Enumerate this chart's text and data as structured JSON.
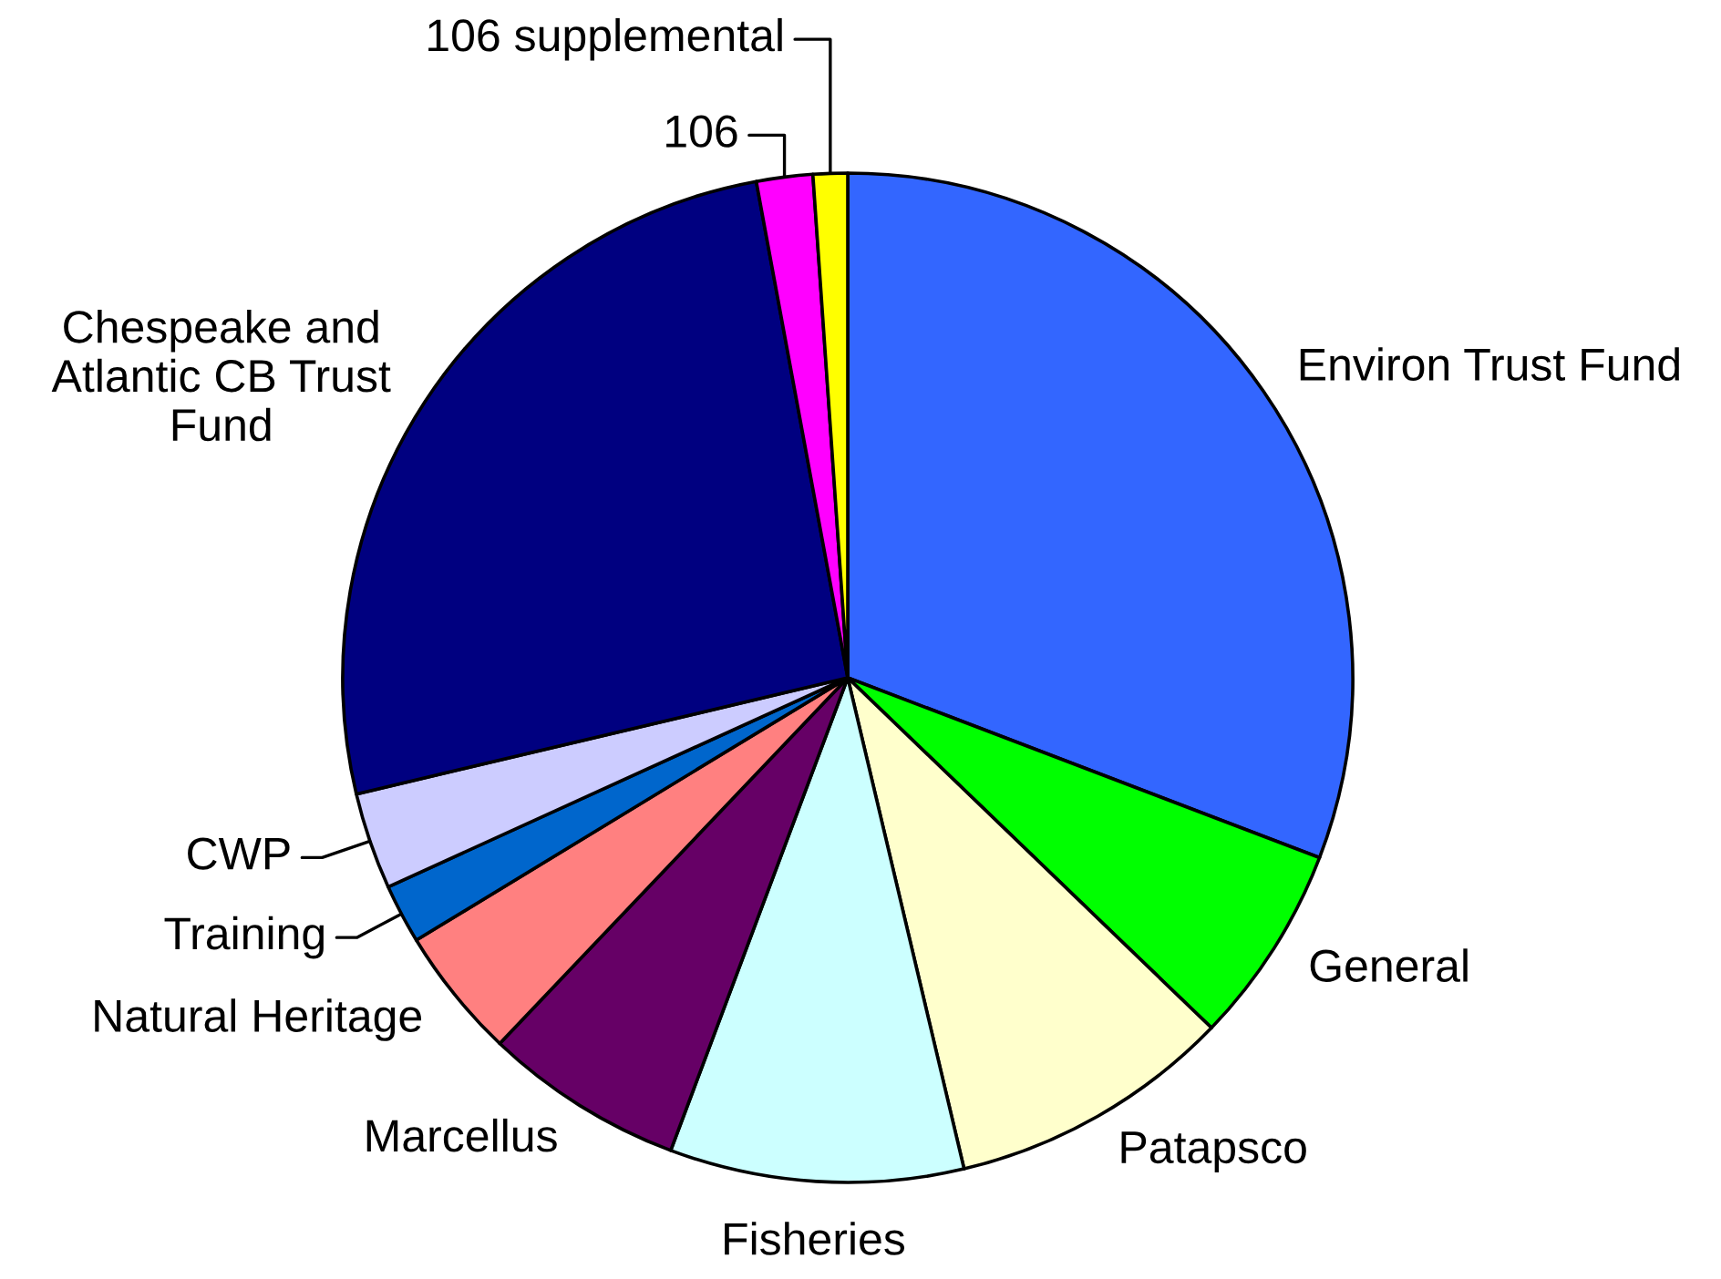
{
  "chart_data": {
    "type": "pie",
    "categories": [
      "Environ Trust Fund",
      "General",
      "Patapsco",
      "Fisheries",
      "Marcellus",
      "Natural Heritage",
      "Training",
      "CWP",
      "Chespeake and\nAtlantic CB Trust\nFund",
      "106",
      "106 supplemental"
    ],
    "values": [
      30.8,
      6.4,
      9.1,
      9.4,
      6.4,
      4.2,
      1.9,
      3.1,
      25.8,
      1.8,
      1.1
    ],
    "colors": [
      "#3366ff",
      "#00ff00",
      "#ffffcc",
      "#ccffff",
      "#660066",
      "#ff8080",
      "#0066cc",
      "#ccccff",
      "#000080",
      "#ff00ff",
      "#ffff00"
    ]
  }
}
